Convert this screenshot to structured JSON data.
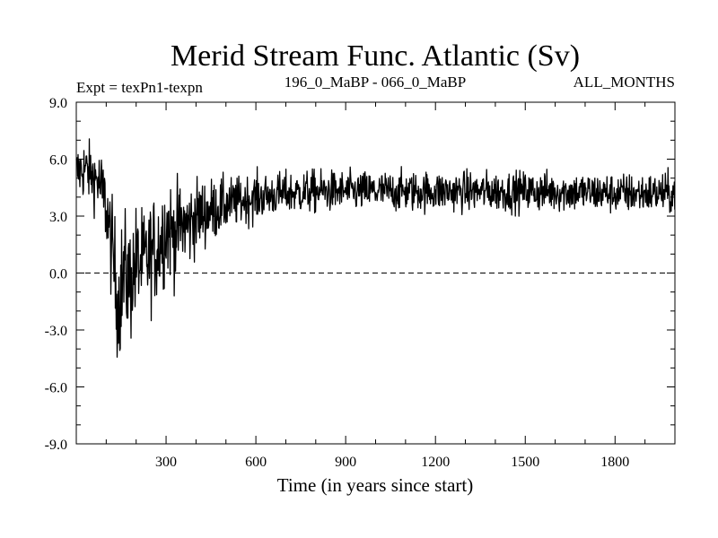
{
  "chart_data": {
    "type": "line",
    "title": "Merid Stream Func. Atlantic (Sv)",
    "subtitle_left": "Expt = texPn1-texpn",
    "subtitle_center": "196_0_MaBP - 066_0_MaBP",
    "subtitle_right": "ALL_MONTHS",
    "xlabel": "Time (in years since start)",
    "ylabel": "",
    "xlim": [
      0,
      2000
    ],
    "ylim": [
      -9.0,
      9.0
    ],
    "x_ticks": [
      "300",
      "600",
      "900",
      "1200",
      "1500",
      "1800"
    ],
    "y_ticks": [
      "9.0",
      "6.0",
      "3.0",
      "0.0",
      "-3.0",
      "-6.0",
      "-9.0"
    ],
    "reference_line": {
      "y": 0.0,
      "style": "dashed"
    },
    "grid": false,
    "series": [
      {
        "name": "",
        "color": "#000000",
        "x": [
          0,
          25,
          50,
          75,
          100,
          125,
          140,
          160,
          180,
          200,
          225,
          250,
          275,
          300,
          325,
          350,
          375,
          400,
          450,
          500,
          550,
          600,
          650,
          700,
          800,
          900,
          1000,
          1200,
          1400,
          1600,
          1800,
          2000
        ],
        "y": [
          5.3,
          5.5,
          5.2,
          4.8,
          3.5,
          0.5,
          -1.5,
          0.0,
          -0.5,
          0.5,
          0.5,
          1.0,
          1.5,
          2.5,
          2.0,
          2.5,
          2.5,
          3.0,
          3.3,
          3.6,
          3.8,
          4.0,
          4.1,
          4.2,
          4.3,
          4.3,
          4.3,
          4.3,
          4.3,
          4.3,
          4.2,
          4.2
        ],
        "noise_amplitude": [
          1.0,
          1.2,
          1.1,
          1.3,
          1.6,
          2.0,
          2.5,
          2.3,
          2.3,
          2.2,
          2.0,
          2.0,
          2.1,
          2.0,
          1.8,
          1.7,
          1.6,
          1.4,
          1.2,
          1.0,
          0.9,
          0.9,
          0.8,
          0.8,
          0.8,
          0.75,
          0.75,
          0.75,
          0.75,
          0.75,
          0.75,
          0.75
        ]
      }
    ]
  }
}
